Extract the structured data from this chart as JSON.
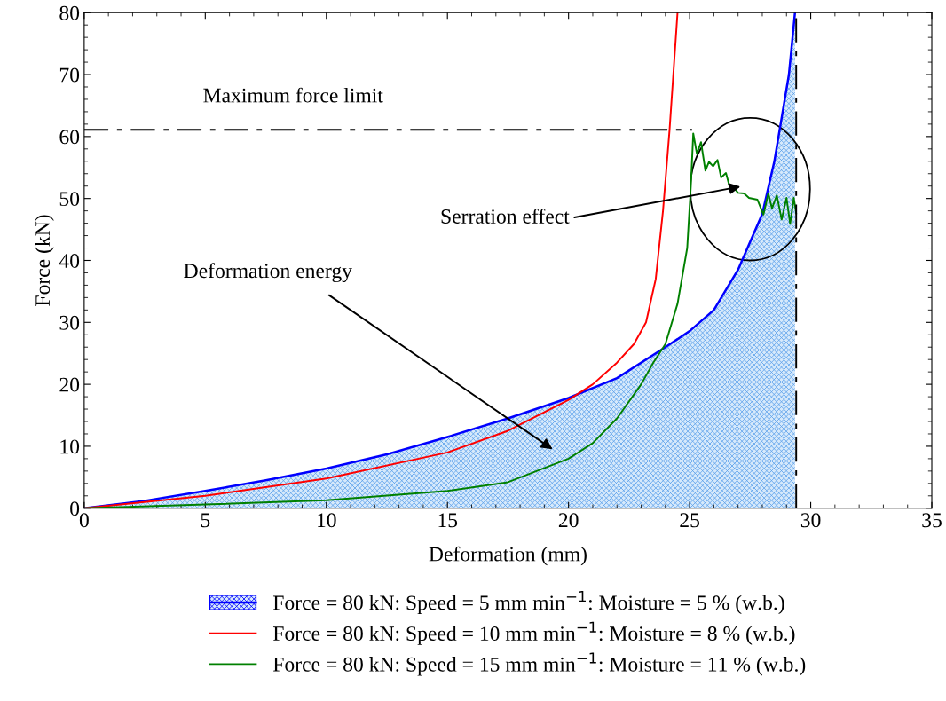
{
  "chart_data": {
    "type": "line",
    "xlabel": "Deformation (mm)",
    "ylabel": "Force (kN)",
    "xlim": [
      0,
      35
    ],
    "ylim": [
      0,
      80
    ],
    "xticks": [
      0,
      5,
      10,
      15,
      20,
      25,
      30,
      35
    ],
    "yticks": [
      0,
      10,
      20,
      30,
      40,
      50,
      60,
      70,
      80
    ],
    "grid": false,
    "legend": "bottom",
    "series": [
      {
        "name": "Force = 80 kN: Speed = 5 mm min$^{−1}$: Moisture = 5 % (w.b.)",
        "type": "area",
        "color": "#0000ff",
        "x": [
          0,
          2.5,
          5,
          7.5,
          10,
          12.5,
          15,
          17.5,
          20,
          22,
          24,
          25,
          26,
          27,
          27.5,
          28,
          28.5,
          28.8,
          29.1,
          29.35
        ],
        "values": [
          0,
          1.2,
          2.8,
          4.5,
          6.4,
          8.7,
          11.5,
          14.5,
          17.8,
          21,
          26,
          28.6,
          32,
          38.5,
          43,
          47.5,
          56,
          63,
          70,
          80
        ]
      },
      {
        "name": "Force = 80 kN: Speed = 10 mm min$^{−1}$: Moisture = 8 % (w.b.)",
        "color": "#ff0000",
        "x": [
          0,
          5,
          10,
          15,
          17.5,
          20,
          21,
          22,
          22.7,
          23.2,
          23.6,
          23.9,
          24.17,
          24.5
        ],
        "values": [
          0,
          2,
          4.8,
          9,
          12.5,
          17.5,
          20,
          23.5,
          26.5,
          30,
          37,
          48,
          61,
          80
        ]
      },
      {
        "name": "Force = 80 kN: Speed = 15 mm min$^{−1}$: Moisture = 11 % (w.b.)",
        "color": "#008000",
        "x": [
          0,
          5,
          10,
          15,
          17.5,
          20,
          21,
          22,
          23,
          23.5,
          24,
          24.5,
          24.9,
          25.05,
          25.15,
          25.3,
          25.47,
          25.65,
          25.8,
          25.97,
          26.15,
          26.3,
          26.5,
          26.63,
          26.8,
          27.0,
          27.25,
          27.45,
          27.8,
          28.05,
          28.25,
          28.4,
          28.6,
          28.8,
          29.0,
          29.15,
          29.3,
          29.4
        ],
        "values": [
          0,
          0.6,
          1.3,
          2.8,
          4.2,
          8,
          10.5,
          14.5,
          20,
          23.5,
          26.5,
          33,
          42,
          52,
          60.5,
          57.2,
          59.1,
          54.5,
          55.9,
          55.2,
          56.2,
          53.4,
          54.1,
          52.2,
          51.9,
          50.9,
          50.8,
          50.1,
          49.8,
          47.4,
          50.8,
          48.4,
          50.5,
          46.6,
          50.1,
          45.9,
          50.1,
          47.6
        ]
      },
      {
        "color": "#000000",
        "line_style": "dashed",
        "x": [
          0,
          25.1
        ],
        "values": [
          61.1,
          61.1
        ]
      }
    ],
    "ref_lines": [
      {
        "axis": "x",
        "value": 29.4,
        "color": "#000000",
        "line_style": "dashed"
      }
    ],
    "annotations": [
      "Maximum force limit",
      {
        "text": "Serration effect",
        "x": 27.2,
        "y": 52
      },
      "Deformation energy"
    ]
  }
}
